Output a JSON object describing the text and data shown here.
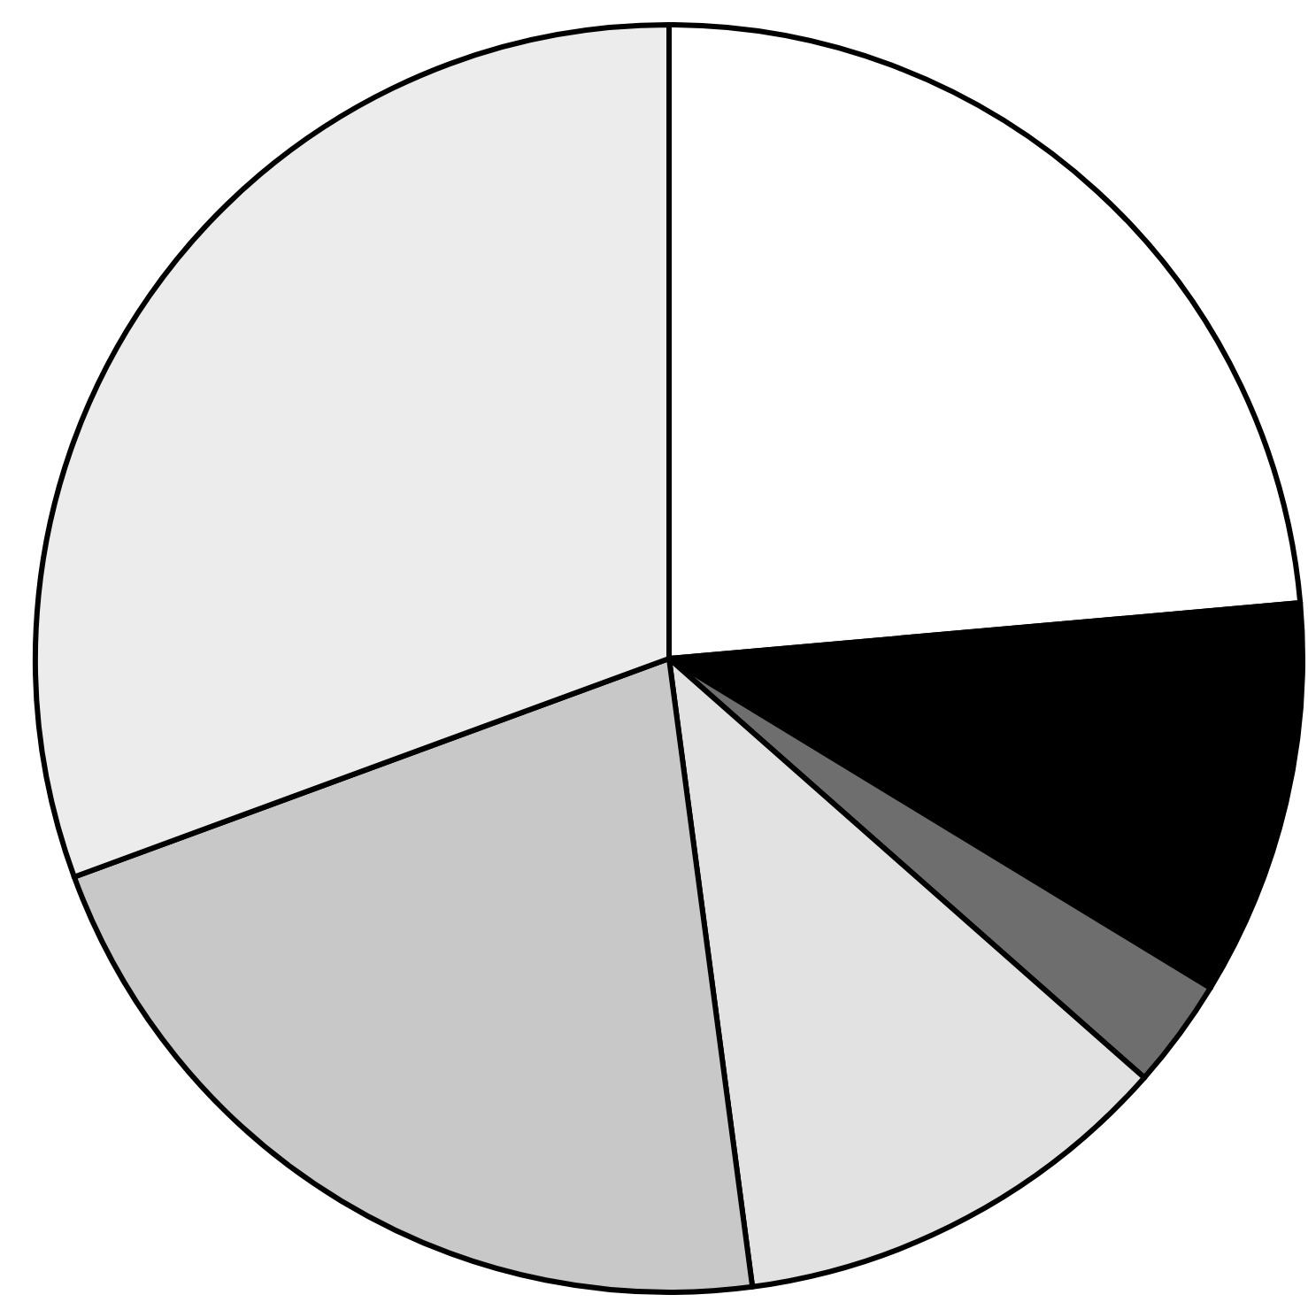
{
  "chart_data": {
    "type": "pie",
    "categories": [
      null,
      null,
      null,
      null,
      null,
      null
    ],
    "values": [
      23.6,
      10.1,
      2.8,
      11.4,
      21.5,
      30.6
    ],
    "colors": [
      "#ffffff",
      "#000000",
      "#6e6e6e",
      "#e2e2e2",
      "#c8c8c8",
      "#ececec"
    ]
  }
}
